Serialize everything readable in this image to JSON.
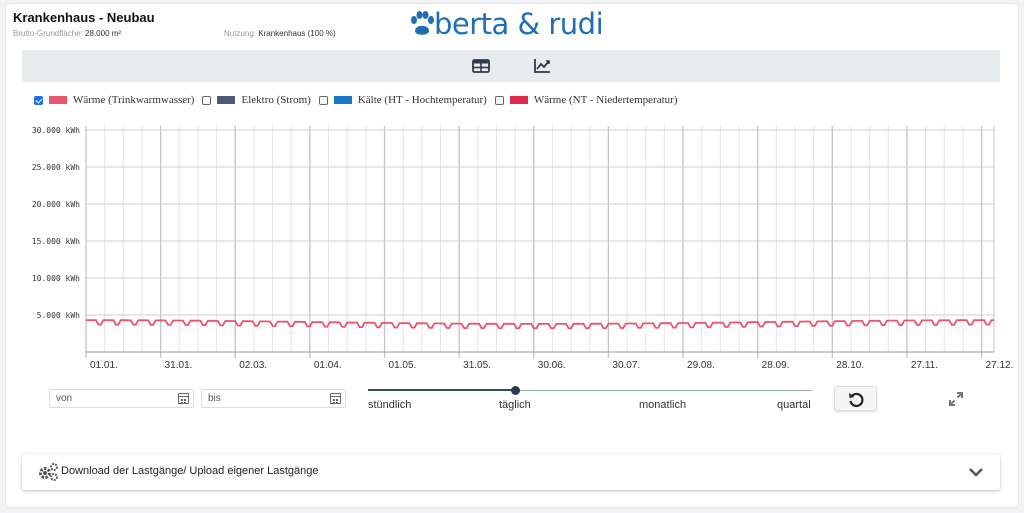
{
  "header": {
    "title": "Krankenhaus - Neubau",
    "bgf_label": "Brutto-Grundfläche:",
    "bgf_value": "28.000 m²",
    "nutzung_label": "Nutzung:",
    "nutzung_value": "Krankenhaus (100 %)",
    "logo_text": "berta & rudi",
    "logo_color": "#1f6fb2"
  },
  "toolbar": {
    "table_icon": "table-icon",
    "chart_icon": "line-chart-icon"
  },
  "legend": [
    {
      "label": "Wärme (Trinkwarmwasser)",
      "color": "#e8556f",
      "checked": true
    },
    {
      "label": "Elektro (Strom)",
      "color": "#4c5b78",
      "checked": false
    },
    {
      "label": "Kälte (HT - Hochtemperatur)",
      "color": "#1c74c4",
      "checked": false
    },
    {
      "label": "Wärme (NT - Niedertemperatur)",
      "color": "#e0284e",
      "checked": false
    }
  ],
  "chart_data": {
    "type": "line",
    "ylim": [
      0,
      30000
    ],
    "yticks": [
      "30.000 kWh",
      "25.000 kWh",
      "20.000 kWh",
      "15.000 kWh",
      "10.000 kWh",
      "5.000 kWh"
    ],
    "ytick_values": [
      30000,
      25000,
      20000,
      15000,
      10000,
      5000
    ],
    "xticks": [
      "01.01.",
      "31.01.",
      "02.03.",
      "01.04.",
      "01.05.",
      "31.05.",
      "30.06.",
      "30.07.",
      "29.08.",
      "28.09.",
      "28.10.",
      "27.11.",
      "27.12."
    ],
    "x_days": [
      0,
      30,
      60,
      90,
      120,
      150,
      180,
      210,
      240,
      270,
      300,
      330,
      360
    ],
    "grid": true,
    "series": [
      {
        "name": "Wärme (Trinkwarmwasser)",
        "color": "#e8556f",
        "weekday_start": 4300,
        "weekday_mid": 3800,
        "weekend_start": 3700,
        "weekend_mid": 3200,
        "days": 365
      }
    ]
  },
  "controls": {
    "from_placeholder": "von",
    "to_placeholder": "bis",
    "resolution_labels": [
      "stündlich",
      "täglich",
      "monatlich",
      "quartal"
    ],
    "resolution_selected": "täglich",
    "resolution_selected_index": 1
  },
  "download": {
    "label": "Download der Lastgänge/ Upload eigener Lastgänge"
  }
}
